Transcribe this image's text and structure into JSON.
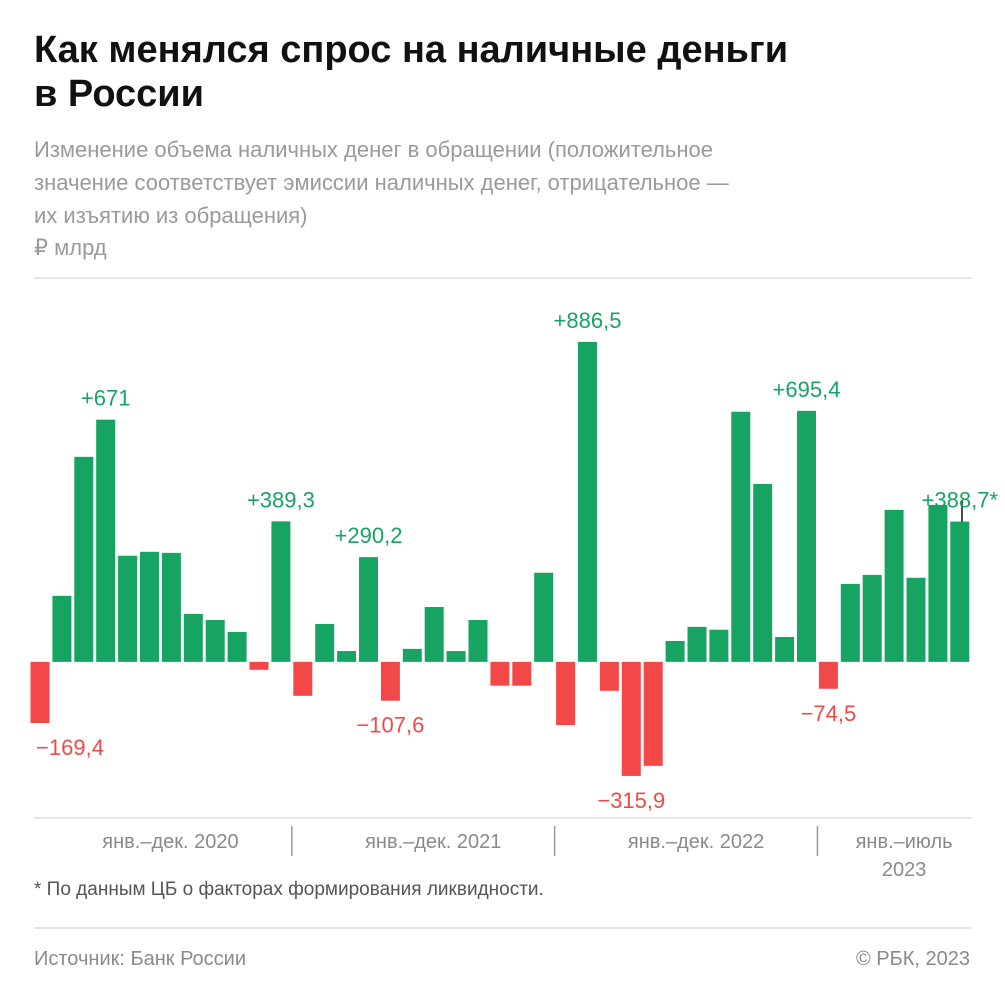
{
  "chart_data": {
    "type": "bar",
    "title": [
      "Как менялся спрос на наличные деньги",
      "в России"
    ],
    "subtitle": [
      "Изменение объема наличных денег в обращении (положительное",
      "значение соответствует эмиссии наличных денег, отрицательное —",
      "их изъятию из обращения)"
    ],
    "unit": "₽ млрд",
    "categories": [
      null,
      null,
      null,
      null,
      null,
      null,
      null,
      null,
      null,
      null,
      null,
      null,
      null,
      null,
      null,
      null,
      null,
      null,
      null,
      null,
      null,
      null,
      null,
      null,
      null,
      null,
      null,
      null,
      null,
      null,
      null,
      null,
      null,
      null,
      null,
      null,
      null,
      null,
      null,
      null,
      null,
      null,
      null
    ],
    "values": [
      -169.4,
      183,
      568,
      671,
      294,
      305,
      302,
      133,
      116,
      83,
      -22,
      389.3,
      -94,
      105,
      30,
      290.2,
      -107.6,
      36,
      152,
      30,
      116,
      -66,
      -66,
      247,
      -175,
      886.5,
      -80,
      -315.9,
      -288,
      58,
      97,
      89,
      693,
      493,
      69,
      695.4,
      -74.5,
      216,
      241,
      421,
      233,
      435,
      388.7
    ],
    "value_labels": [
      "−169,4",
      null,
      null,
      "+671",
      null,
      null,
      null,
      null,
      null,
      null,
      null,
      "+389,3",
      null,
      null,
      null,
      "+290,2",
      "−107,6",
      null,
      null,
      null,
      null,
      null,
      null,
      null,
      null,
      "+886,5",
      null,
      "−315,9",
      null,
      null,
      null,
      null,
      null,
      null,
      null,
      "+695,4",
      "−74,5",
      null,
      null,
      null,
      null,
      null,
      "+388,7*"
    ],
    "positive_color": "#17a463",
    "negative_color": "#f24848",
    "ylim": [
      -330,
      900
    ],
    "x_group_labels": [
      [
        "янв.–дек. 2020"
      ],
      [
        "янв.–дек. 2021"
      ],
      [
        "янв.–дек. 2022"
      ],
      [
        "янв.–июль",
        "2023"
      ]
    ],
    "footnote": "* По данным ЦБ о факторах формирования ликвидности.",
    "source": "Источник: Банк России",
    "copyright": "© РБК, 2023"
  }
}
